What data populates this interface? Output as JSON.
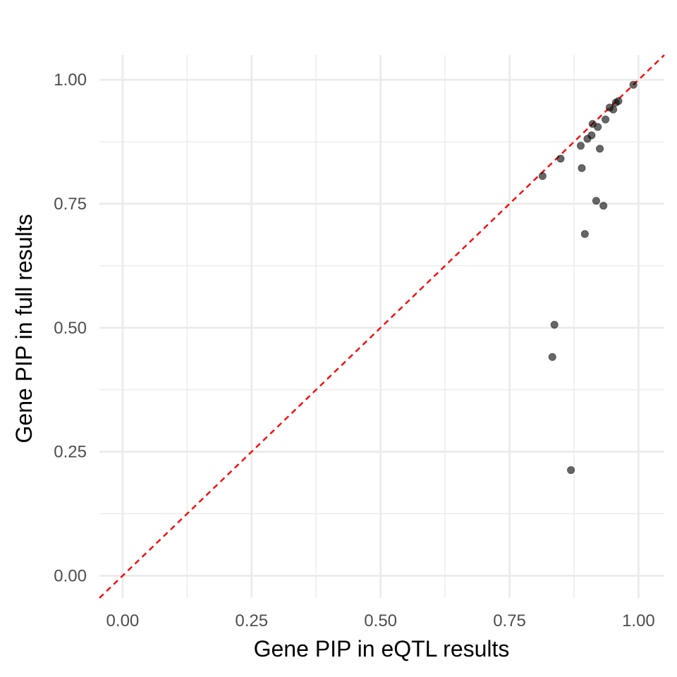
{
  "chart_data": {
    "type": "scatter",
    "title": "",
    "xlabel": "Gene PIP in eQTL results",
    "ylabel": "Gene PIP in full results",
    "xlim": [
      -0.045,
      1.05
    ],
    "ylim": [
      -0.045,
      1.05
    ],
    "x_ticks": [
      0,
      0.25,
      0.5,
      0.75,
      1
    ],
    "x_tick_labels": [
      "0.00",
      "0.25",
      "0.50",
      "0.75",
      "1.00"
    ],
    "y_ticks": [
      0,
      0.25,
      0.5,
      0.75,
      1
    ],
    "y_tick_labels": [
      "0.00",
      "0.25",
      "0.50",
      "0.75",
      "1.00"
    ],
    "minor_ticks": [
      0.125,
      0.375,
      0.625,
      0.875
    ],
    "grid": true,
    "reference_line": {
      "type": "identity",
      "slope": 1,
      "intercept": 0,
      "style": "dashed",
      "color": "#ff0000"
    },
    "point_color": "#000000",
    "point_opacity": 0.6,
    "points": [
      {
        "x": 0.99,
        "y": 0.99
      },
      {
        "x": 0.961,
        "y": 0.957
      },
      {
        "x": 0.956,
        "y": 0.954
      },
      {
        "x": 0.951,
        "y": 0.94
      },
      {
        "x": 0.944,
        "y": 0.944
      },
      {
        "x": 0.936,
        "y": 0.92
      },
      {
        "x": 0.921,
        "y": 0.905
      },
      {
        "x": 0.911,
        "y": 0.911
      },
      {
        "x": 0.909,
        "y": 0.888
      },
      {
        "x": 0.901,
        "y": 0.881
      },
      {
        "x": 0.888,
        "y": 0.867
      },
      {
        "x": 0.925,
        "y": 0.861
      },
      {
        "x": 0.849,
        "y": 0.841
      },
      {
        "x": 0.89,
        "y": 0.822
      },
      {
        "x": 0.814,
        "y": 0.806
      },
      {
        "x": 0.918,
        "y": 0.756
      },
      {
        "x": 0.932,
        "y": 0.746
      },
      {
        "x": 0.896,
        "y": 0.689
      },
      {
        "x": 0.837,
        "y": 0.506
      },
      {
        "x": 0.833,
        "y": 0.441
      },
      {
        "x": 0.869,
        "y": 0.213
      }
    ]
  }
}
